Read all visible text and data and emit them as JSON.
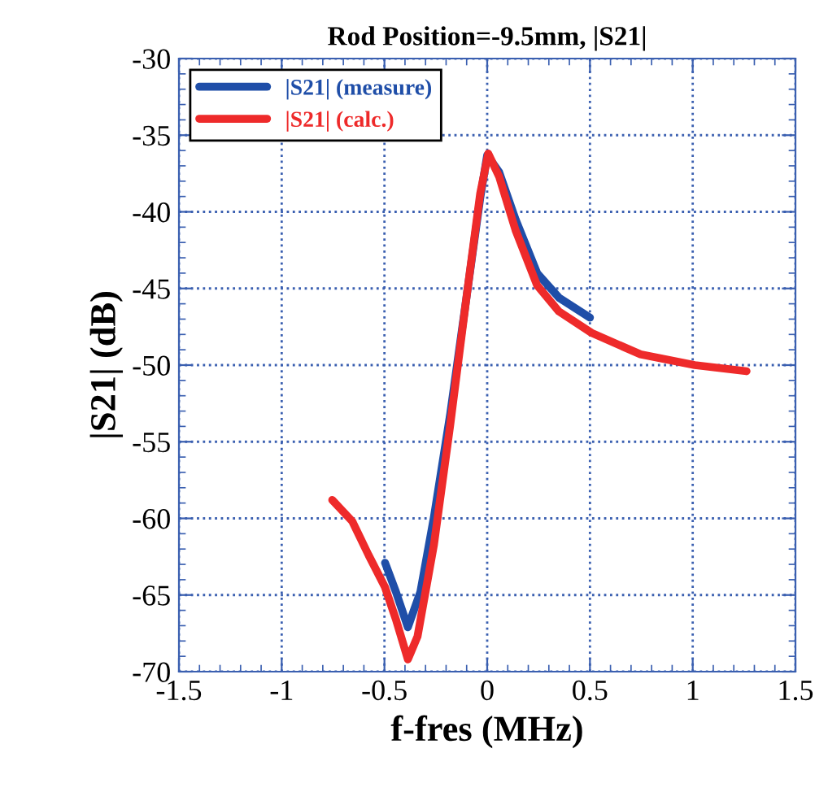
{
  "chart_data": {
    "type": "line",
    "title": "Rod Position=-9.5mm, |S21|",
    "xlabel": "f-fres (MHz)",
    "ylabel": "|S21| (dB)",
    "xlim": [
      -1.5,
      1.5
    ],
    "xticks": [
      -1.5,
      -1,
      -0.5,
      0,
      0.5,
      1,
      1.5
    ],
    "ylim": [
      -70,
      -30
    ],
    "yticks": [
      -70,
      -65,
      -60,
      -55,
      -50,
      -45,
      -40,
      -35,
      -30
    ],
    "grid": true,
    "legend": "top left",
    "line_style": "solid",
    "marker": "none",
    "series": [
      {
        "name": "|S21| (measure)",
        "color": "#1f4ea8",
        "x": [
          -0.497,
          -0.444,
          -0.386,
          -0.325,
          -0.259,
          -0.18,
          -0.1,
          -0.034,
          0,
          0.058,
          0.138,
          0.243,
          0.349,
          0.5
        ],
        "values": [
          -62.9,
          -64.8,
          -67.1,
          -64.8,
          -59.9,
          -53.2,
          -45.5,
          -39.1,
          -36.3,
          -37.4,
          -40.5,
          -44.0,
          -45.6,
          -46.9
        ]
      },
      {
        "name": "|S21| (calc.)",
        "color": "#ee2a2a",
        "x": [
          -0.754,
          -0.656,
          -0.577,
          -0.497,
          -0.444,
          -0.386,
          -0.339,
          -0.259,
          -0.18,
          -0.1,
          -0.034,
          0.005,
          0.058,
          0.138,
          0.243,
          0.349,
          0.508,
          0.746,
          1.01,
          1.262
        ],
        "values": [
          -58.8,
          -60.2,
          -62.4,
          -64.5,
          -66.6,
          -69.2,
          -67.7,
          -61.7,
          -53.9,
          -45.5,
          -38.8,
          -36.2,
          -37.7,
          -41.2,
          -44.8,
          -46.5,
          -47.9,
          -49.3,
          -50.0,
          -50.4
        ]
      }
    ]
  }
}
